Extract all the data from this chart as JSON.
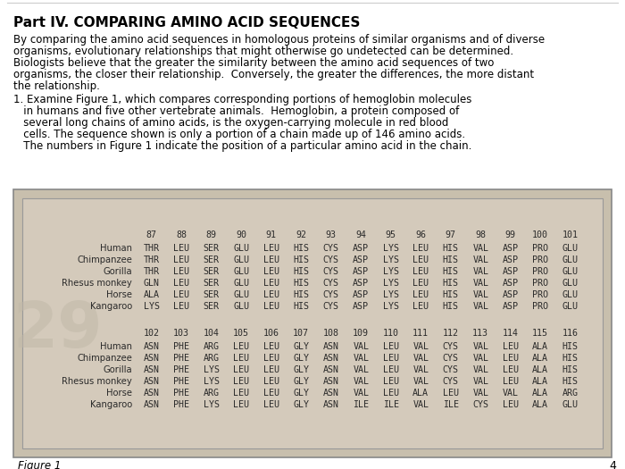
{
  "title": "Part IV. COMPARING AMINO ACID SEQUENCES",
  "intro_lines": [
    "By comparing the amino acid sequences in homologous proteins of similar organisms and of diverse",
    "organisms, evolutionary relationships that might otherwise go undetected can be determined.",
    "Biologists believe that the greater the similarity between the amino acid sequences of two",
    "organisms, the closer their relationship.  Conversely, the greater the differences, the more distant",
    "the relationship."
  ],
  "question_lines": [
    "1. Examine Figure 1, which compares corresponding portions of hemoglobin molecules",
    "   in humans and five other vertebrate animals.  Hemoglobin, a protein composed of",
    "   several long chains of amino acids, is the oxygen-carrying molecule in red blood",
    "   cells. The sequence shown is only a portion of a chain made up of 146 amino acids.",
    "   The numbers in Figure 1 indicate the position of a particular amino acid in the chain."
  ],
  "table1_header": [
    "87",
    "88",
    "89",
    "90",
    "91",
    "92",
    "93",
    "94",
    "95",
    "96",
    "97",
    "98",
    "99",
    "100",
    "101"
  ],
  "table1_organisms": [
    "Human",
    "Chimpanzee",
    "Gorilla",
    "Rhesus monkey",
    "Horse",
    "Kangaroo"
  ],
  "table1_data": [
    [
      "THR",
      "LEU",
      "SER",
      "GLU",
      "LEU",
      "HIS",
      "CYS",
      "ASP",
      "LYS",
      "LEU",
      "HIS",
      "VAL",
      "ASP",
      "PRO",
      "GLU"
    ],
    [
      "THR",
      "LEU",
      "SER",
      "GLU",
      "LEU",
      "HIS",
      "CYS",
      "ASP",
      "LYS",
      "LEU",
      "HIS",
      "VAL",
      "ASP",
      "PRO",
      "GLU"
    ],
    [
      "THR",
      "LEU",
      "SER",
      "GLU",
      "LEU",
      "HIS",
      "CYS",
      "ASP",
      "LYS",
      "LEU",
      "HIS",
      "VAL",
      "ASP",
      "PRO",
      "GLU"
    ],
    [
      "GLN",
      "LEU",
      "SER",
      "GLU",
      "LEU",
      "HIS",
      "CYS",
      "ASP",
      "LYS",
      "LEU",
      "HIS",
      "VAL",
      "ASP",
      "PRO",
      "GLU"
    ],
    [
      "ALA",
      "LEU",
      "SER",
      "GLU",
      "LEU",
      "HIS",
      "CYS",
      "ASP",
      "LYS",
      "LEU",
      "HIS",
      "VAL",
      "ASP",
      "PRO",
      "GLU"
    ],
    [
      "LYS",
      "LEU",
      "SER",
      "GLU",
      "LEU",
      "HIS",
      "CYS",
      "ASP",
      "LYS",
      "LEU",
      "HIS",
      "VAL",
      "ASP",
      "PRO",
      "GLU"
    ]
  ],
  "table2_header": [
    "102",
    "103",
    "104",
    "105",
    "106",
    "107",
    "108",
    "109",
    "110",
    "111",
    "112",
    "113",
    "114",
    "115",
    "116"
  ],
  "table2_organisms": [
    "Human",
    "Chimpanzee",
    "Gorilla",
    "Rhesus monkey",
    "Horse",
    "Kangaroo"
  ],
  "table2_data": [
    [
      "ASN",
      "PHE",
      "ARG",
      "LEU",
      "LEU",
      "GLY",
      "ASN",
      "VAL",
      "LEU",
      "VAL",
      "CYS",
      "VAL",
      "LEU",
      "ALA",
      "HIS"
    ],
    [
      "ASN",
      "PHE",
      "ARG",
      "LEU",
      "LEU",
      "GLY",
      "ASN",
      "VAL",
      "LEU",
      "VAL",
      "CYS",
      "VAL",
      "LEU",
      "ALA",
      "HIS"
    ],
    [
      "ASN",
      "PHE",
      "LYS",
      "LEU",
      "LEU",
      "GLY",
      "ASN",
      "VAL",
      "LEU",
      "VAL",
      "CYS",
      "VAL",
      "LEU",
      "ALA",
      "HIS"
    ],
    [
      "ASN",
      "PHE",
      "LYS",
      "LEU",
      "LEU",
      "GLY",
      "ASN",
      "VAL",
      "LEU",
      "VAL",
      "CYS",
      "VAL",
      "LEU",
      "ALA",
      "HIS"
    ],
    [
      "ASN",
      "PHE",
      "ARG",
      "LEU",
      "LEU",
      "GLY",
      "ASN",
      "VAL",
      "LEU",
      "ALA",
      "LEU",
      "VAL",
      "VAL",
      "ALA",
      "ARG"
    ],
    [
      "ASN",
      "PHE",
      "LYS",
      "LEU",
      "LEU",
      "GLY",
      "ASN",
      "ILE",
      "ILE",
      "VAL",
      "ILE",
      "CYS",
      "LEU",
      "ALA",
      "GLU"
    ]
  ],
  "figure_label": "Figure 1",
  "page_number": "4",
  "bg_color": "#ffffff",
  "outer_box_color": "#c8bfad",
  "inner_box_color": "#d4cabb",
  "border_color": "#888888",
  "text_color": "#000000",
  "table_text_color": "#2a2a2a",
  "watermark_color": "#bdb5a5",
  "top_line_color": "#cccccc"
}
